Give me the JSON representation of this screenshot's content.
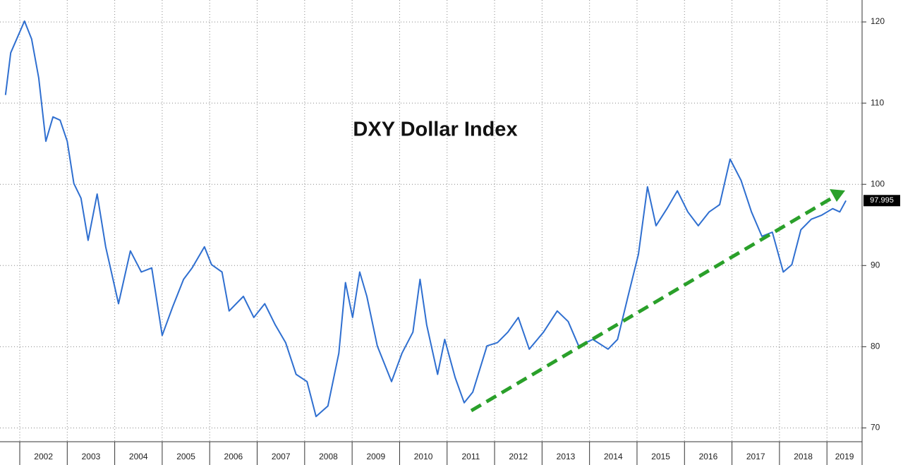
{
  "chart_data": {
    "type": "line",
    "title": "DXY Dollar Index",
    "x": [
      2001.7,
      2001.81,
      2002.1,
      2002.25,
      2002.4,
      2002.55,
      2002.7,
      2002.85,
      2003.0,
      2003.14,
      2003.29,
      2003.44,
      2003.63,
      2003.81,
      2004.08,
      2004.33,
      2004.56,
      2004.78,
      2005.0,
      2005.22,
      2005.45,
      2005.63,
      2005.89,
      2006.04,
      2006.26,
      2006.41,
      2006.71,
      2006.93,
      2007.16,
      2007.38,
      2007.6,
      2007.82,
      2008.05,
      2008.24,
      2008.49,
      2008.72,
      2008.86,
      2009.01,
      2009.16,
      2009.31,
      2009.53,
      2009.83,
      2010.05,
      2010.28,
      2010.43,
      2010.57,
      2010.8,
      2010.95,
      2011.17,
      2011.36,
      2011.54,
      2011.84,
      2012.06,
      2012.28,
      2012.5,
      2012.73,
      2013.03,
      2013.32,
      2013.55,
      2013.77,
      2014.07,
      2014.39,
      2014.59,
      2014.81,
      2015.03,
      2015.22,
      2015.4,
      2015.63,
      2015.85,
      2016.07,
      2016.29,
      2016.52,
      2016.74,
      2016.96,
      2017.19,
      2017.41,
      2017.63,
      2017.85,
      2018.08,
      2018.26,
      2018.45,
      2018.67,
      2018.89,
      2019.12,
      2019.27,
      2019.4
    ],
    "series": [
      {
        "color": "#2f6fd0",
        "values": [
          111.0,
          116.2,
          120.1,
          117.9,
          113.1,
          105.3,
          108.3,
          107.9,
          105.3,
          100.1,
          98.3,
          93.1,
          98.8,
          92.3,
          85.3,
          91.8,
          89.2,
          89.7,
          81.4,
          84.9,
          88.3,
          89.7,
          92.3,
          90.1,
          89.2,
          84.4,
          86.2,
          83.6,
          85.3,
          82.7,
          80.5,
          76.6,
          75.7,
          71.4,
          72.7,
          79.2,
          87.9,
          83.6,
          89.2,
          86.2,
          80.1,
          75.7,
          79.2,
          81.8,
          88.3,
          82.7,
          76.6,
          80.9,
          76.2,
          73.1,
          74.4,
          80.1,
          80.5,
          81.8,
          83.6,
          79.7,
          81.8,
          84.4,
          83.1,
          80.1,
          80.9,
          79.7,
          80.9,
          86.2,
          91.4,
          99.7,
          94.9,
          97.0,
          99.2,
          96.6,
          94.9,
          96.6,
          97.5,
          103.1,
          100.5,
          96.6,
          93.6,
          94.1,
          89.2,
          90.1,
          94.4,
          95.7,
          96.2,
          97.0,
          96.6,
          97.995
        ]
      }
    ],
    "xlim": [
      2001.584,
      2019.74
    ],
    "xticks": [
      2002,
      2003,
      2004,
      2005,
      2006,
      2007,
      2008,
      2009,
      2010,
      2011,
      2012,
      2013,
      2014,
      2015,
      2016,
      2017,
      2018,
      2019
    ],
    "ylim": [
      68.3,
      122.7
    ],
    "yticks": [
      70,
      80,
      90,
      100,
      110,
      120
    ],
    "grid": true
  }
}
